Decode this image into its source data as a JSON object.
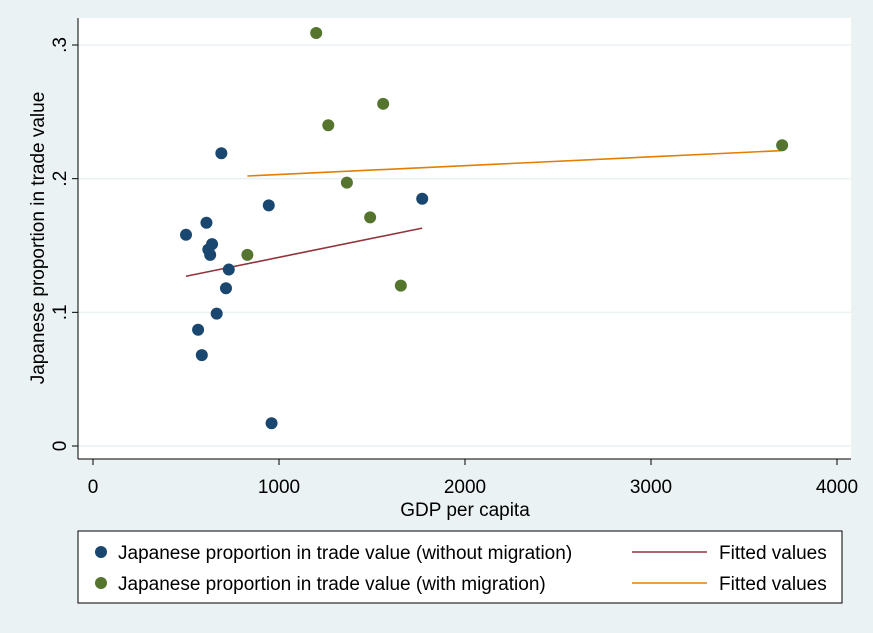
{
  "chart_data": {
    "type": "scatter",
    "title": "",
    "xlabel": "GDP per capita",
    "ylabel": "Japanese proportion in trade value",
    "xlim": [
      0,
      4000
    ],
    "ylim": [
      0,
      0.3
    ],
    "x_ticks": [
      0,
      1000,
      2000,
      3000,
      4000
    ],
    "x_tick_labels": [
      "0",
      "1000",
      "2000",
      "3000",
      "4000"
    ],
    "y_ticks": [
      0,
      0.1,
      0.2,
      0.3
    ],
    "y_tick_labels": [
      "0",
      ".1",
      ".2",
      ".3"
    ],
    "grid": "horizontal",
    "legend_position": "bottom",
    "series": [
      {
        "name": "Japanese proportion in trade value (without migration)",
        "kind": "scatter",
        "color": "#1a476f",
        "points": [
          {
            "x": 500,
            "y": 0.158
          },
          {
            "x": 610,
            "y": 0.167
          },
          {
            "x": 620,
            "y": 0.147
          },
          {
            "x": 630,
            "y": 0.143
          },
          {
            "x": 640,
            "y": 0.151
          },
          {
            "x": 690,
            "y": 0.219
          },
          {
            "x": 730,
            "y": 0.132
          },
          {
            "x": 715,
            "y": 0.118
          },
          {
            "x": 665,
            "y": 0.099
          },
          {
            "x": 565,
            "y": 0.087
          },
          {
            "x": 585,
            "y": 0.068
          },
          {
            "x": 945,
            "y": 0.18
          },
          {
            "x": 960,
            "y": 0.017
          },
          {
            "x": 1770,
            "y": 0.185
          }
        ]
      },
      {
        "name": "Japanese proportion in trade value (with migration)",
        "kind": "scatter",
        "color": "#55752f",
        "points": [
          {
            "x": 1200,
            "y": 0.309
          },
          {
            "x": 1265,
            "y": 0.24
          },
          {
            "x": 1560,
            "y": 0.256
          },
          {
            "x": 1365,
            "y": 0.197
          },
          {
            "x": 1490,
            "y": 0.171
          },
          {
            "x": 830,
            "y": 0.143
          },
          {
            "x": 1655,
            "y": 0.12
          },
          {
            "x": 3705,
            "y": 0.225
          }
        ]
      },
      {
        "name": "Fitted values",
        "kind": "line",
        "color": "#90353b",
        "points": [
          {
            "x": 500,
            "y": 0.127
          },
          {
            "x": 1770,
            "y": 0.163
          }
        ]
      },
      {
        "name": "Fitted values",
        "kind": "line",
        "color": "#e37e00",
        "points": [
          {
            "x": 830,
            "y": 0.202
          },
          {
            "x": 3705,
            "y": 0.221
          }
        ]
      }
    ]
  }
}
